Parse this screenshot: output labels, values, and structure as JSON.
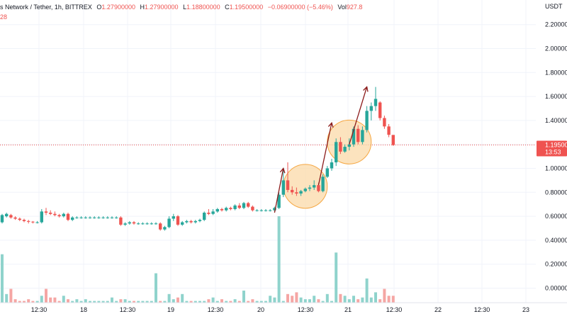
{
  "header": {
    "symbol": "s Network / Tether, 1h, BITTREX",
    "o_label": "O",
    "o_value": "1.27900000",
    "h_label": "H",
    "h_value": "1.27900000",
    "l_label": "L",
    "l_value": "1.18800000",
    "c_label": "C",
    "c_value": "1.19500000",
    "change": "−0.06900000 (−5.46%)",
    "vol_label": "Vol",
    "vol_value": "927.8",
    "sub_value": "28"
  },
  "currency": "USDT",
  "colors": {
    "up": "#26a69a",
    "down": "#ef5350",
    "volume_up": "#8fd3cc",
    "volume_down": "#f5a6a4",
    "arrow": "#8b1a1a",
    "highlight_fill": "#fbd9a8",
    "highlight_stroke": "#f5a742"
  },
  "price_marker": {
    "value": "1.19500",
    "countdown": "13:53"
  },
  "chart_data": {
    "type": "candlestick",
    "y_ticks": [
      "2.20000",
      "2.00000",
      "1.80000",
      "1.60000",
      "1.40000",
      "1.20000",
      "1.00000",
      "0.80000",
      "0.60000",
      "0.40000",
      "0.20000",
      "0.00000"
    ],
    "x_ticks": [
      "12:30",
      "18",
      "12:30",
      "19",
      "12:30",
      "20",
      "12:30",
      "21",
      "12:30",
      "22",
      "12:30",
      "23"
    ],
    "ylim": [
      -0.1,
      2.3
    ],
    "last_price": 1.195,
    "candles": [
      [
        0.55,
        0.62,
        0.54,
        0.61
      ],
      [
        0.6,
        0.63,
        0.59,
        0.62
      ],
      [
        0.61,
        0.62,
        0.58,
        0.59
      ],
      [
        0.59,
        0.6,
        0.57,
        0.58
      ],
      [
        0.58,
        0.59,
        0.56,
        0.57
      ],
      [
        0.57,
        0.58,
        0.55,
        0.56
      ],
      [
        0.56,
        0.57,
        0.54,
        0.555
      ],
      [
        0.555,
        0.56,
        0.54,
        0.55
      ],
      [
        0.55,
        0.56,
        0.54,
        0.55
      ],
      [
        0.55,
        0.66,
        0.54,
        0.64
      ],
      [
        0.64,
        0.67,
        0.61,
        0.63
      ],
      [
        0.63,
        0.65,
        0.61,
        0.62
      ],
      [
        0.62,
        0.64,
        0.6,
        0.61
      ],
      [
        0.61,
        0.62,
        0.59,
        0.6
      ],
      [
        0.6,
        0.63,
        0.59,
        0.62
      ],
      [
        0.62,
        0.63,
        0.56,
        0.57
      ],
      [
        0.57,
        0.6,
        0.56,
        0.59
      ],
      [
        0.59,
        0.6,
        0.58,
        0.59
      ],
      [
        0.59,
        0.6,
        0.58,
        0.59
      ],
      [
        0.59,
        0.6,
        0.58,
        0.59
      ],
      [
        0.59,
        0.6,
        0.58,
        0.59
      ],
      [
        0.59,
        0.6,
        0.58,
        0.59
      ],
      [
        0.59,
        0.6,
        0.58,
        0.59
      ],
      [
        0.59,
        0.6,
        0.58,
        0.59
      ],
      [
        0.59,
        0.6,
        0.58,
        0.59
      ],
      [
        0.59,
        0.6,
        0.58,
        0.59
      ],
      [
        0.59,
        0.6,
        0.58,
        0.59
      ],
      [
        0.59,
        0.6,
        0.52,
        0.53
      ],
      [
        0.53,
        0.55,
        0.52,
        0.54
      ],
      [
        0.54,
        0.56,
        0.53,
        0.55
      ],
      [
        0.55,
        0.56,
        0.53,
        0.54
      ],
      [
        0.54,
        0.55,
        0.53,
        0.54
      ],
      [
        0.54,
        0.55,
        0.53,
        0.54
      ],
      [
        0.54,
        0.55,
        0.53,
        0.54
      ],
      [
        0.54,
        0.55,
        0.53,
        0.54
      ],
      [
        0.54,
        0.55,
        0.53,
        0.54
      ],
      [
        0.54,
        0.55,
        0.48,
        0.49
      ],
      [
        0.49,
        0.52,
        0.48,
        0.51
      ],
      [
        0.51,
        0.6,
        0.5,
        0.58
      ],
      [
        0.58,
        0.62,
        0.56,
        0.6
      ],
      [
        0.6,
        0.61,
        0.52,
        0.53
      ],
      [
        0.53,
        0.56,
        0.52,
        0.55
      ],
      [
        0.55,
        0.57,
        0.54,
        0.56
      ],
      [
        0.56,
        0.57,
        0.54,
        0.55
      ],
      [
        0.55,
        0.57,
        0.54,
        0.56
      ],
      [
        0.56,
        0.58,
        0.55,
        0.57
      ],
      [
        0.57,
        0.64,
        0.56,
        0.63
      ],
      [
        0.63,
        0.66,
        0.61,
        0.62
      ],
      [
        0.62,
        0.66,
        0.61,
        0.64
      ],
      [
        0.64,
        0.67,
        0.63,
        0.66
      ],
      [
        0.66,
        0.67,
        0.64,
        0.65
      ],
      [
        0.65,
        0.68,
        0.64,
        0.67
      ],
      [
        0.67,
        0.68,
        0.65,
        0.66
      ],
      [
        0.66,
        0.7,
        0.65,
        0.69
      ],
      [
        0.69,
        0.71,
        0.66,
        0.67
      ],
      [
        0.67,
        0.72,
        0.66,
        0.71
      ],
      [
        0.71,
        0.72,
        0.67,
        0.68
      ],
      [
        0.68,
        0.69,
        0.64,
        0.65
      ],
      [
        0.65,
        0.66,
        0.64,
        0.65
      ],
      [
        0.65,
        0.66,
        0.64,
        0.65
      ],
      [
        0.65,
        0.66,
        0.64,
        0.65
      ],
      [
        0.65,
        0.66,
        0.64,
        0.65
      ],
      [
        0.65,
        0.68,
        0.64,
        0.67
      ],
      [
        0.67,
        0.8,
        0.66,
        0.78
      ],
      [
        0.78,
        1.0,
        0.76,
        0.9
      ],
      [
        0.9,
        1.05,
        0.8,
        0.82
      ],
      [
        0.82,
        0.85,
        0.78,
        0.8
      ],
      [
        0.8,
        0.84,
        0.77,
        0.79
      ],
      [
        0.79,
        0.82,
        0.77,
        0.81
      ],
      [
        0.81,
        0.84,
        0.8,
        0.83
      ],
      [
        0.83,
        0.86,
        0.81,
        0.84
      ],
      [
        0.84,
        0.9,
        0.82,
        0.86
      ],
      [
        0.86,
        0.88,
        0.8,
        0.81
      ],
      [
        0.81,
        0.95,
        0.8,
        0.93
      ],
      [
        0.93,
        1.02,
        0.92,
        1.0
      ],
      [
        1.0,
        1.08,
        0.98,
        1.05
      ],
      [
        1.05,
        1.25,
        1.02,
        1.22
      ],
      [
        1.22,
        1.26,
        1.12,
        1.14
      ],
      [
        1.14,
        1.2,
        1.13,
        1.18
      ],
      [
        1.18,
        1.25,
        1.15,
        1.2
      ],
      [
        1.2,
        1.35,
        1.18,
        1.33
      ],
      [
        1.33,
        1.36,
        1.2,
        1.22
      ],
      [
        1.22,
        1.35,
        1.2,
        1.32
      ],
      [
        1.32,
        1.52,
        1.3,
        1.48
      ],
      [
        1.48,
        1.55,
        1.4,
        1.52
      ],
      [
        1.52,
        1.68,
        1.48,
        1.58
      ],
      [
        1.55,
        1.56,
        1.4,
        1.42
      ],
      [
        1.42,
        1.44,
        1.33,
        1.35
      ],
      [
        1.35,
        1.37,
        1.26,
        1.28
      ],
      [
        1.279,
        1.279,
        1.188,
        1.195
      ]
    ],
    "volume": [
      0.28,
      0.05,
      0.08,
      0.02,
      0.01,
      0.01,
      0.02,
      0.01,
      0.01,
      0.04,
      0.08,
      0.03,
      0.03,
      0.01,
      0.04,
      0.02,
      0.01,
      0.02,
      0.01,
      0.02,
      0.01,
      0.01,
      0.01,
      0.01,
      0.01,
      0.03,
      0.01,
      0.02,
      0.02,
      0.01,
      0.01,
      0.01,
      0.01,
      0.01,
      0.01,
      0.17,
      0.01,
      0.01,
      0.05,
      0.02,
      0.03,
      0.05,
      0.01,
      0.01,
      0.01,
      0.01,
      0.01,
      0.02,
      0.03,
      0.01,
      0.02,
      0.01,
      0.01,
      0.02,
      0.01,
      0.07,
      0.01,
      0.02,
      0.01,
      0.01,
      0.01,
      0.04,
      0.03,
      0.5,
      0.01,
      0.05,
      0.04,
      0.06,
      0.03,
      0.02,
      0.02,
      0.04,
      0.02,
      0.01,
      0.05,
      0.01,
      0.29,
      0.05,
      0.04,
      0.02,
      0.04,
      0.02,
      0.03,
      0.14,
      0.03,
      0.06,
      0.02,
      0.08,
      0.04,
      0.04
    ],
    "annotations": {
      "arrows": [
        {
          "from_index": 62,
          "to_index": 64,
          "from_price": 0.63,
          "to_price": 1.0
        },
        {
          "from_index": 72,
          "to_index": 75,
          "from_price": 0.86,
          "to_price": 1.38
        },
        {
          "from_index": 79,
          "to_index": 83,
          "from_price": 1.2,
          "to_price": 1.68
        }
      ],
      "circles": [
        {
          "center_index": 69,
          "center_price": 0.85
        },
        {
          "center_index": 79,
          "center_price": 1.22
        }
      ]
    }
  }
}
